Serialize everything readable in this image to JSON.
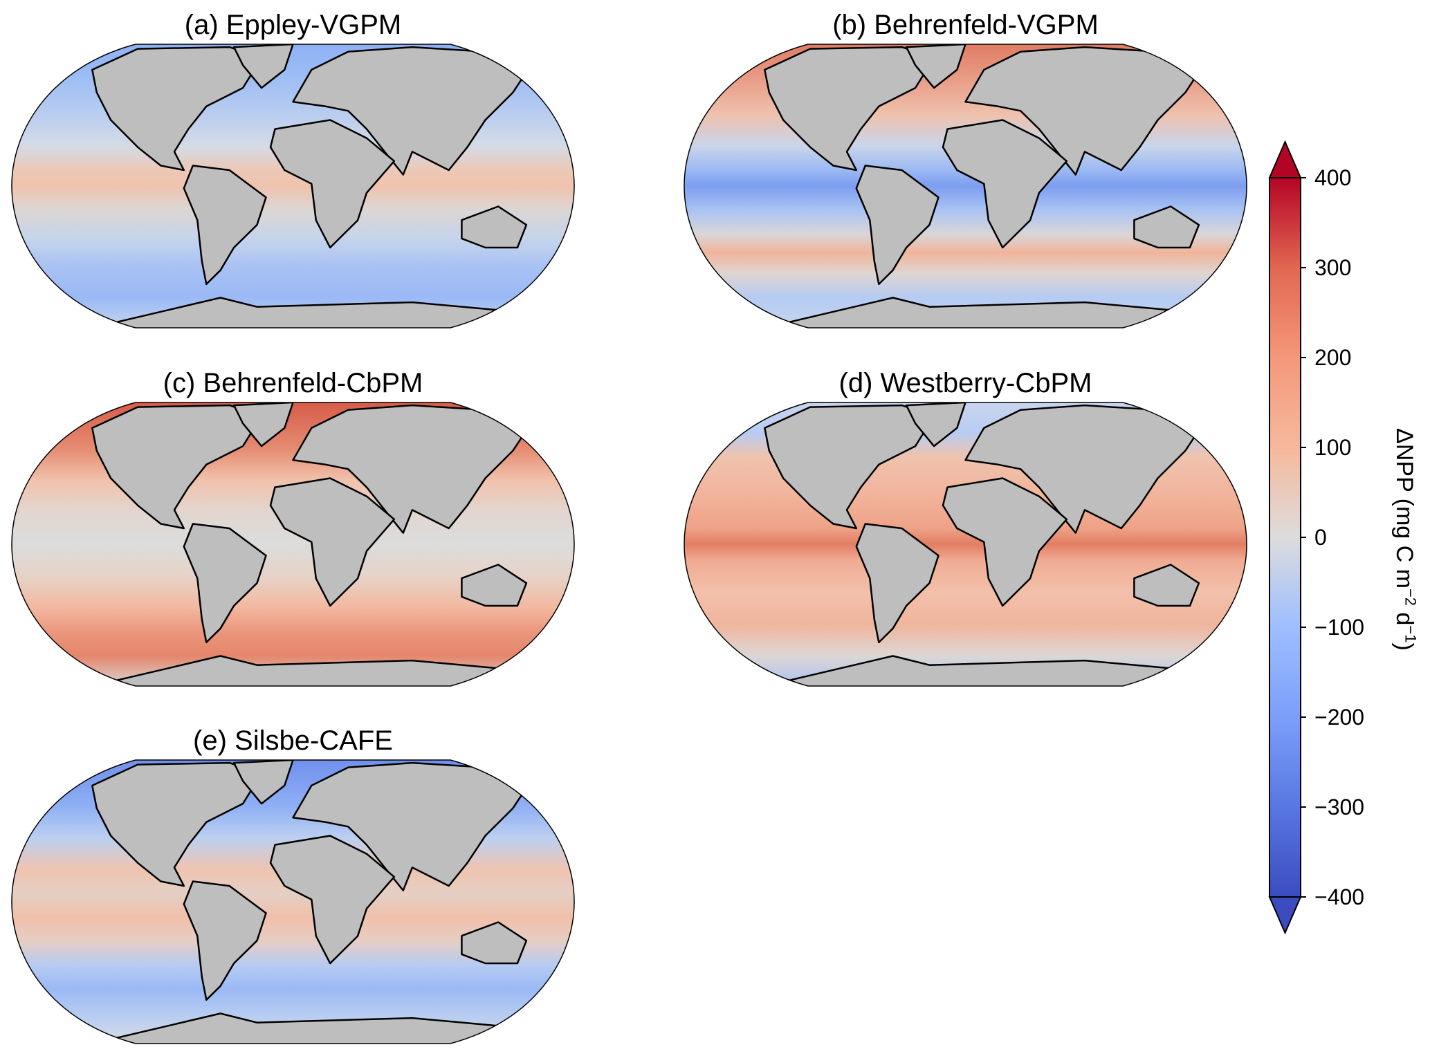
{
  "panels": [
    {
      "title": "(a) Eppley-VGPM",
      "ocean_stops": [
        [
          90,
          "#8fb0f5"
        ],
        [
          70,
          "#9bbcf5"
        ],
        [
          45,
          "#b9cdf0"
        ],
        [
          25,
          "#d4dbe6"
        ],
        [
          10,
          "#ecc8b6"
        ],
        [
          0,
          "#f0c3ae"
        ],
        [
          -15,
          "#dcd6d4"
        ],
        [
          -35,
          "#c3d3ee"
        ],
        [
          -50,
          "#a9c2f3"
        ],
        [
          -70,
          "#9ab9f5"
        ],
        [
          -90,
          "#c7d6f0"
        ]
      ]
    },
    {
      "title": "(b) Behrenfeld-VGPM",
      "ocean_stops": [
        [
          90,
          "#e07b62"
        ],
        [
          65,
          "#e9a08a"
        ],
        [
          45,
          "#efc1ad"
        ],
        [
          25,
          "#c9d5ea"
        ],
        [
          10,
          "#9cb9f3"
        ],
        [
          0,
          "#7d9df0"
        ],
        [
          -15,
          "#a9c3f3"
        ],
        [
          -30,
          "#d9d6d8"
        ],
        [
          -42,
          "#f0b49b"
        ],
        [
          -55,
          "#dfd5d2"
        ],
        [
          -70,
          "#b5cbf2"
        ],
        [
          -90,
          "#c7d6f0"
        ]
      ]
    },
    {
      "title": "(c) Behrenfeld-CbPM",
      "ocean_stops": [
        [
          90,
          "#d75a48"
        ],
        [
          60,
          "#e58c72"
        ],
        [
          40,
          "#f1c2ac"
        ],
        [
          20,
          "#e2d6cf"
        ],
        [
          0,
          "#dcdcdc"
        ],
        [
          -20,
          "#e6d3c8"
        ],
        [
          -40,
          "#f3b8a0"
        ],
        [
          -55,
          "#ea967c"
        ],
        [
          -70,
          "#e5866c"
        ],
        [
          -90,
          "#d8d8d8"
        ]
      ]
    },
    {
      "title": "(d) Westberry-CbPM",
      "ocean_stops": [
        [
          90,
          "#c9d5ee"
        ],
        [
          70,
          "#b8ccf2"
        ],
        [
          55,
          "#efc3ae"
        ],
        [
          30,
          "#f2b39b"
        ],
        [
          10,
          "#eea287"
        ],
        [
          0,
          "#e27e64"
        ],
        [
          -10,
          "#f0ab92"
        ],
        [
          -30,
          "#f2c0aa"
        ],
        [
          -50,
          "#f0b59d"
        ],
        [
          -70,
          "#ddd6d4"
        ],
        [
          -90,
          "#aac2f3"
        ]
      ]
    },
    {
      "title": "(e) Silsbe-CAFE",
      "ocean_stops": [
        [
          90,
          "#6f8fec"
        ],
        [
          60,
          "#8fb0f5"
        ],
        [
          40,
          "#bccff0"
        ],
        [
          20,
          "#f0c4b0"
        ],
        [
          5,
          "#e4cfc5"
        ],
        [
          -10,
          "#f1c0aa"
        ],
        [
          -25,
          "#e5cec4"
        ],
        [
          -40,
          "#b6cbf2"
        ],
        [
          -55,
          "#9bb9f5"
        ],
        [
          -70,
          "#b5cbf2"
        ],
        [
          -90,
          "#d8dce6"
        ]
      ]
    }
  ],
  "land_color": "#bebebe",
  "colorbar": {
    "label": "ΔNPP (mg C m",
    "label_exp1": "−2",
    "label_mid": " d",
    "label_exp2": "−1",
    "label_end": ")",
    "range": [
      -400,
      400
    ],
    "extend": "both",
    "colormap": "coolwarm",
    "ticks": [
      "400",
      "300",
      "200",
      "100",
      "0",
      "−100",
      "−200",
      "−300",
      "−400"
    ],
    "tick_values": [
      400,
      300,
      200,
      100,
      0,
      -100,
      -200,
      -300,
      -400
    ],
    "color_stops": [
      [
        -400,
        "#3b4cc0"
      ],
      [
        -300,
        "#5977e3"
      ],
      [
        -200,
        "#7b9ff9"
      ],
      [
        -100,
        "#9ebeff"
      ],
      [
        0,
        "#dddcdc"
      ],
      [
        100,
        "#f6b89c"
      ],
      [
        200,
        "#f4987a"
      ],
      [
        300,
        "#e16751"
      ],
      [
        400,
        "#b40426"
      ]
    ]
  }
}
